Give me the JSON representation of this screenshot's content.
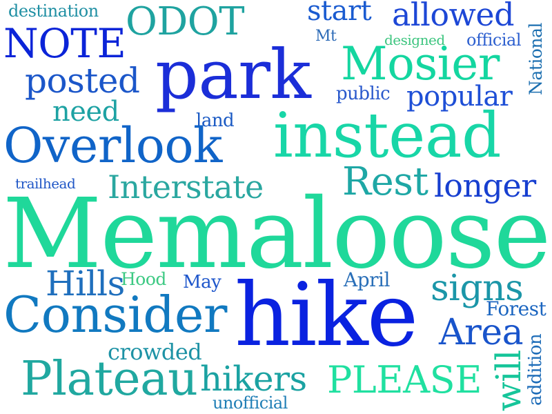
{
  "words": [
    {
      "text": "destination",
      "color": "#1f8fa3"
    },
    {
      "text": "ODOT",
      "color": "#1fa3a0"
    },
    {
      "text": "start",
      "color": "#1a5bd0"
    },
    {
      "text": "allowed",
      "color": "#1d47d6"
    },
    {
      "text": "NOTE",
      "color": "#0b24d8"
    },
    {
      "text": "Mt",
      "color": "#2d6bb7"
    },
    {
      "text": "designed",
      "color": "#3dc57f"
    },
    {
      "text": "official",
      "color": "#2c5fcf"
    },
    {
      "text": "park",
      "color": "#1b2ed8"
    },
    {
      "text": "Mosier",
      "color": "#14d6a0"
    },
    {
      "text": "National",
      "color": "#1c6fb0"
    },
    {
      "text": "posted",
      "color": "#1b56c9"
    },
    {
      "text": "public",
      "color": "#2a59cc"
    },
    {
      "text": "popular",
      "color": "#1e4fd6"
    },
    {
      "text": "need",
      "color": "#1da2a3"
    },
    {
      "text": "land",
      "color": "#1b5ac4"
    },
    {
      "text": "instead",
      "color": "#18d6a7"
    },
    {
      "text": "Overlook",
      "color": "#1064c8"
    },
    {
      "text": "trailhead",
      "color": "#1f56c6"
    },
    {
      "text": "Interstate",
      "color": "#2aa7a0"
    },
    {
      "text": "Rest",
      "color": "#1ea7a5"
    },
    {
      "text": "longer",
      "color": "#173fd0"
    },
    {
      "text": "Memaloose",
      "color": "#1fd89a"
    },
    {
      "text": "Hills",
      "color": "#1f6fbd"
    },
    {
      "text": "Hood",
      "color": "#3dc983"
    },
    {
      "text": "May",
      "color": "#1e56cb"
    },
    {
      "text": "April",
      "color": "#2a6fb8"
    },
    {
      "text": "signs",
      "color": "#1b96a8"
    },
    {
      "text": "Forest",
      "color": "#1c66c0"
    },
    {
      "text": "Consider",
      "color": "#1179c0"
    },
    {
      "text": "hike",
      "color": "#0a22e0"
    },
    {
      "text": "Area",
      "color": "#1954cb"
    },
    {
      "text": "crowded",
      "color": "#1d92a5"
    },
    {
      "text": "addition",
      "color": "#1d6cb8"
    },
    {
      "text": "Plateau",
      "color": "#20a8a0"
    },
    {
      "text": "hikers",
      "color": "#1ba2a2"
    },
    {
      "text": "PLEASE",
      "color": "#20e0a0"
    },
    {
      "text": "will",
      "color": "#16c59a"
    },
    {
      "text": "unofficial",
      "color": "#1f7eb5"
    }
  ]
}
